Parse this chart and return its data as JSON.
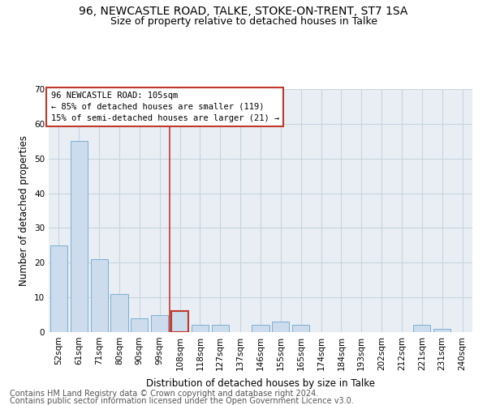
{
  "title": "96, NEWCASTLE ROAD, TALKE, STOKE-ON-TRENT, ST7 1SA",
  "subtitle": "Size of property relative to detached houses in Talke",
  "xlabel": "Distribution of detached houses by size in Talke",
  "ylabel": "Number of detached properties",
  "footnote1": "Contains HM Land Registry data © Crown copyright and database right 2024.",
  "footnote2": "Contains public sector information licensed under the Open Government Licence v3.0.",
  "categories": [
    "52sqm",
    "61sqm",
    "71sqm",
    "80sqm",
    "90sqm",
    "99sqm",
    "108sqm",
    "118sqm",
    "127sqm",
    "137sqm",
    "146sqm",
    "155sqm",
    "165sqm",
    "174sqm",
    "184sqm",
    "193sqm",
    "202sqm",
    "212sqm",
    "221sqm",
    "231sqm",
    "240sqm"
  ],
  "values": [
    25,
    55,
    21,
    11,
    4,
    5,
    6,
    2,
    2,
    0,
    2,
    3,
    2,
    0,
    0,
    0,
    0,
    0,
    2,
    1,
    0
  ],
  "bar_color": "#ccdcec",
  "bar_edge_color": "#7aafd4",
  "highlight_idx": 6,
  "highlight_color": "#c0392b",
  "annotation_text": "96 NEWCASTLE ROAD: 105sqm\n← 85% of detached houses are smaller (119)\n15% of semi-detached houses are larger (21) →",
  "ylim": [
    0,
    70
  ],
  "yticks": [
    0,
    10,
    20,
    30,
    40,
    50,
    60,
    70
  ],
  "grid_color": "#c8d4de",
  "background_color": "#e8eef4",
  "title_fontsize": 10,
  "subtitle_fontsize": 9,
  "axis_label_fontsize": 8.5,
  "tick_fontsize": 7.5,
  "annotation_fontsize": 7.5,
  "footnote_fontsize": 7
}
